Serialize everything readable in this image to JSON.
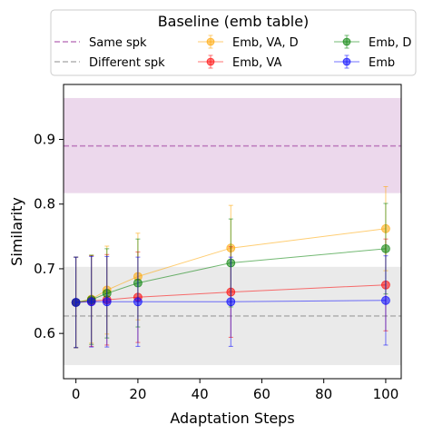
{
  "chart_data": {
    "type": "line",
    "xlabel": "Adaptation Steps",
    "ylabel": "Similarity",
    "xlim": [
      -4,
      105
    ],
    "ylim": [
      0.53,
      0.985
    ],
    "xticks": [
      0,
      20,
      40,
      60,
      80,
      100
    ],
    "yticks": [
      0.6,
      0.7,
      0.8,
      0.9
    ],
    "ytick_labels": [
      "0.6",
      "0.7",
      "0.8",
      "0.9"
    ],
    "grid": false,
    "legend": {
      "title": "Baseline (emb table)",
      "placement": "top-outside",
      "ncol": 3
    },
    "bands": [
      {
        "name": "Same spk",
        "center": 0.89,
        "low": 0.817,
        "high": 0.964,
        "color": "#bf7fbf"
      },
      {
        "name": "Different spk",
        "center": 0.627,
        "low": 0.551,
        "high": 0.703,
        "color": "#b3b3b3"
      }
    ],
    "series": [
      {
        "name": "Emb, VA, D",
        "color": "#ffa500",
        "x": [
          0,
          5,
          10,
          20,
          50,
          100
        ],
        "values": [
          0.648,
          0.653,
          0.667,
          0.688,
          0.732,
          0.762
        ],
        "errors": [
          0.07,
          0.068,
          0.068,
          0.067,
          0.066,
          0.065
        ]
      },
      {
        "name": "Emb, VA",
        "color": "#ff0000",
        "x": [
          0,
          5,
          10,
          20,
          50,
          100
        ],
        "values": [
          0.648,
          0.65,
          0.652,
          0.656,
          0.664,
          0.675
        ],
        "errors": [
          0.07,
          0.07,
          0.07,
          0.07,
          0.07,
          0.071
        ]
      },
      {
        "name": "Emb, D",
        "color": "#008000",
        "x": [
          0,
          5,
          10,
          20,
          50,
          100
        ],
        "values": [
          0.648,
          0.652,
          0.662,
          0.678,
          0.709,
          0.731
        ],
        "errors": [
          0.07,
          0.069,
          0.069,
          0.068,
          0.068,
          0.07
        ]
      },
      {
        "name": "Emb",
        "color": "#0000ff",
        "x": [
          0,
          5,
          10,
          20,
          50,
          100
        ],
        "values": [
          0.648,
          0.649,
          0.649,
          0.649,
          0.649,
          0.651
        ],
        "errors": [
          0.07,
          0.07,
          0.07,
          0.069,
          0.069,
          0.069
        ]
      }
    ]
  }
}
